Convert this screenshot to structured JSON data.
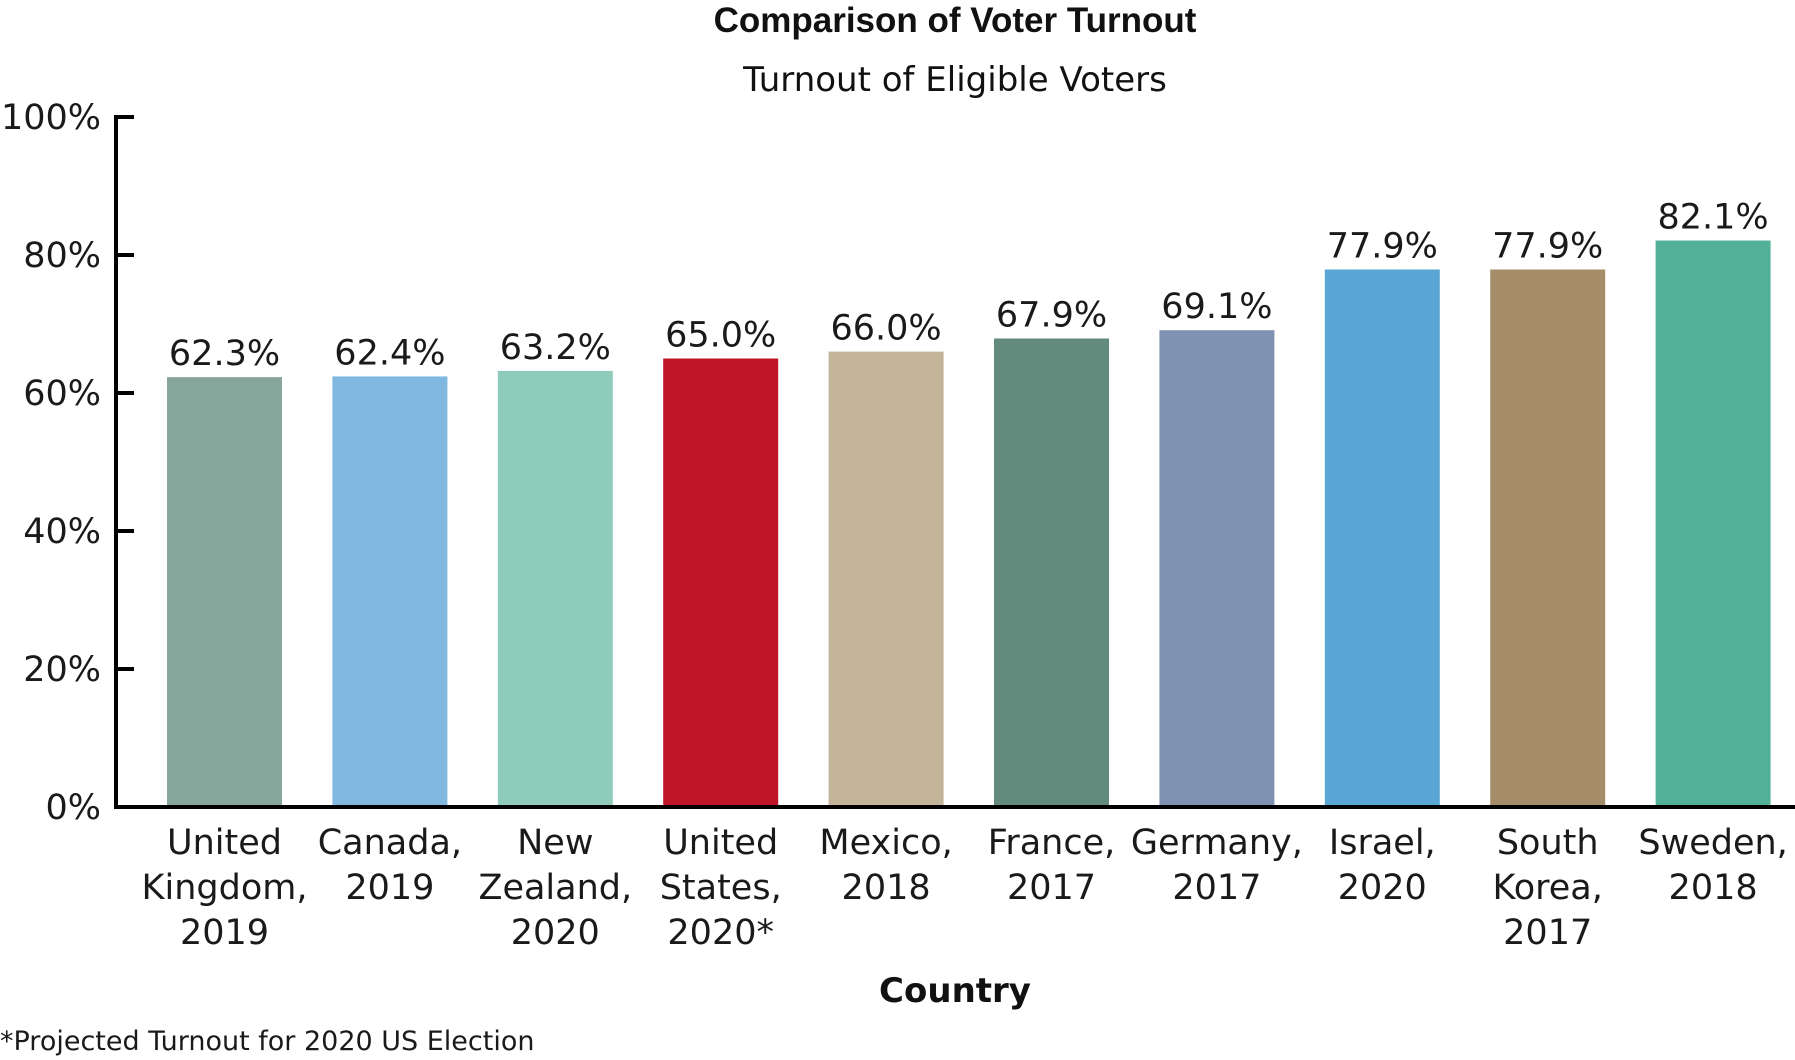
{
  "chart_data": {
    "type": "bar",
    "title": "Comparison of Voter Turnout",
    "subtitle": "Turnout of Eligible Voters",
    "xlabel": "Country",
    "ylabel": "",
    "ylim": [
      0,
      100
    ],
    "yticks": [
      "0%",
      "20%",
      "40%",
      "60%",
      "80%",
      "100%"
    ],
    "categories": [
      [
        "United",
        "Kingdom,",
        "2019"
      ],
      [
        "Canada,",
        "2019"
      ],
      [
        "New",
        "Zealand,",
        "2020"
      ],
      [
        "United",
        "States,",
        "2020*"
      ],
      [
        "Mexico,",
        "2018"
      ],
      [
        "France,",
        "2017"
      ],
      [
        "Germany,",
        "2017"
      ],
      [
        "Israel,",
        "2020"
      ],
      [
        "South",
        "Korea,",
        "2017"
      ],
      [
        "Sweden,",
        "2018"
      ]
    ],
    "values": [
      62.3,
      62.4,
      63.2,
      65.0,
      66.0,
      67.9,
      69.1,
      77.9,
      77.9,
      82.1
    ],
    "value_labels": [
      "62.3%",
      "62.4%",
      "63.2%",
      "65.0%",
      "66.0%",
      "67.9%",
      "69.1%",
      "77.9%",
      "77.9%",
      "82.1%"
    ],
    "colors": [
      "#87a69b",
      "#80b8df",
      "#8ecbbb",
      "#c01428",
      "#c4b49a",
      "#638b7d",
      "#7f92b3",
      "#59a6d4",
      "#a68d6a",
      "#53b197"
    ],
    "grid": false,
    "legend": "none"
  },
  "footnote": "*Projected Turnout for 2020 US Election"
}
